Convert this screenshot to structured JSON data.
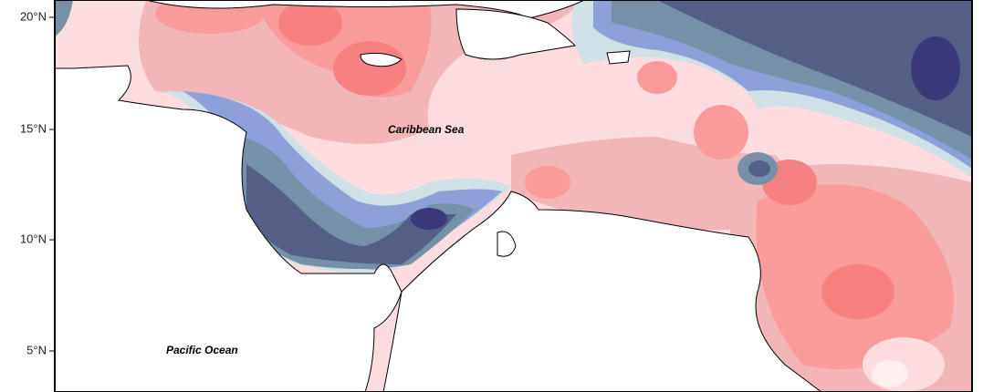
{
  "axis": {
    "latitude_labels": [
      "20°N",
      "15°N",
      "10°N",
      "5°N"
    ]
  },
  "labels": {
    "sea": "Caribbean Sea",
    "ocean": "Pacific Ocean"
  }
}
